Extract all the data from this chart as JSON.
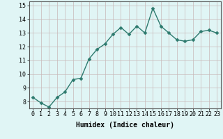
{
  "x": [
    0,
    1,
    2,
    3,
    4,
    5,
    6,
    7,
    8,
    9,
    10,
    11,
    12,
    13,
    14,
    15,
    16,
    17,
    18,
    19,
    20,
    21,
    22,
    23
  ],
  "y": [
    8.3,
    7.9,
    7.6,
    8.3,
    8.7,
    9.6,
    9.7,
    11.1,
    11.8,
    12.2,
    12.9,
    13.4,
    12.9,
    13.5,
    13.0,
    14.8,
    13.5,
    13.0,
    12.5,
    12.4,
    12.5,
    13.1,
    13.2,
    13.0
  ],
  "line_color": "#2d7a6e",
  "marker_color": "#2d7a6e",
  "bg_color": "#e0f5f5",
  "grid_color": "#c9b8b8",
  "xlabel": "Humidex (Indice chaleur)",
  "xlim": [
    -0.5,
    23.5
  ],
  "ylim": [
    7.5,
    15.3
  ],
  "yticks": [
    8,
    9,
    10,
    11,
    12,
    13,
    14,
    15
  ],
  "xticks": [
    0,
    1,
    2,
    3,
    4,
    5,
    6,
    7,
    8,
    9,
    10,
    11,
    12,
    13,
    14,
    15,
    16,
    17,
    18,
    19,
    20,
    21,
    22,
    23
  ],
  "xlabel_fontsize": 7,
  "tick_fontsize": 6,
  "line_width": 1.0,
  "marker_size": 2.5,
  "spine_color": "#555555"
}
